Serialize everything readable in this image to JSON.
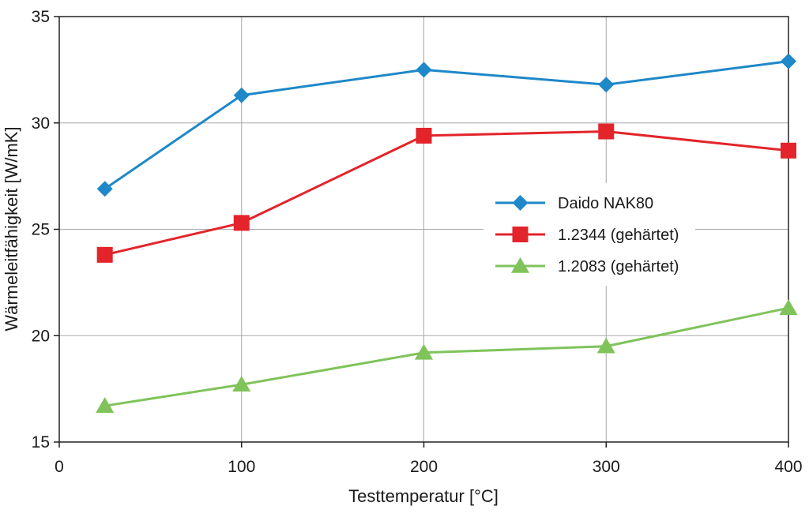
{
  "chart_data": {
    "type": "line",
    "xlabel": "Testtemperatur [°C]",
    "ylabel": "Wärmeleitfähigkeit [W/mK]",
    "xlim": [
      0,
      400
    ],
    "ylim": [
      15,
      35
    ],
    "xticks": [
      0,
      100,
      200,
      300,
      400
    ],
    "yticks": [
      15,
      20,
      25,
      30,
      35
    ],
    "grid": true,
    "legend_position": "center-right",
    "x": [
      25,
      100,
      200,
      300,
      400
    ],
    "series": [
      {
        "name": "Daido NAK80",
        "color": "#1e88c8",
        "marker": "diamond",
        "values": [
          26.9,
          31.3,
          32.5,
          31.8,
          32.9
        ]
      },
      {
        "name": "1.2344 (gehärtet)",
        "color": "#e3242b",
        "marker": "square",
        "values": [
          23.8,
          25.3,
          29.4,
          29.6,
          28.7
        ]
      },
      {
        "name": "1.2083 (gehärtet)",
        "color": "#7fc35a",
        "marker": "triangle",
        "values": [
          16.7,
          17.7,
          19.2,
          19.5,
          21.3
        ]
      }
    ]
  }
}
